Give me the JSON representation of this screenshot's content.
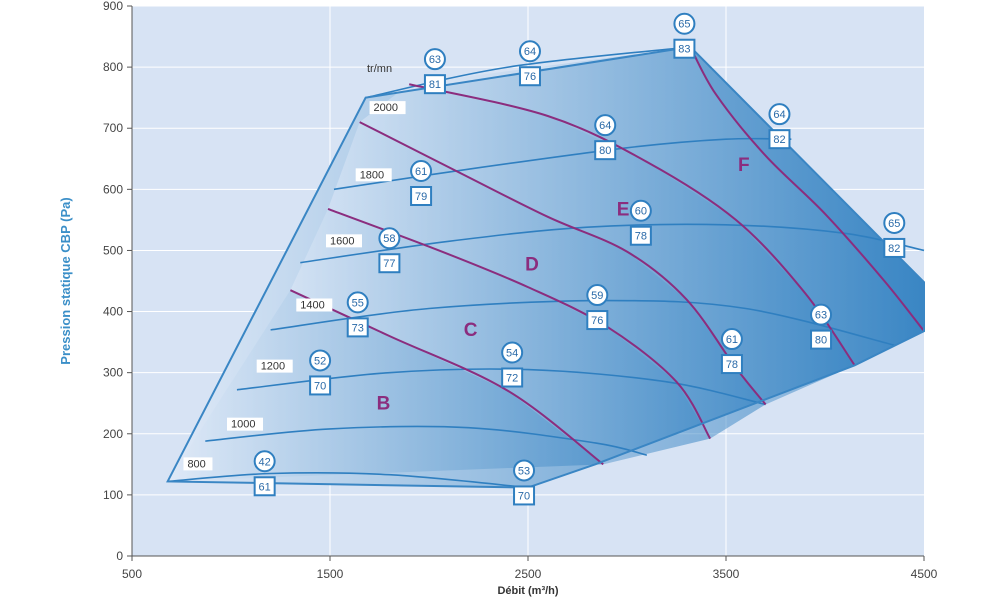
{
  "chart_data": {
    "type": "fan-performance-map",
    "xlabel": "Débit (m³/h)",
    "ylabel": "Pression statique CBP (Pa)",
    "xlim": [
      500,
      4500
    ],
    "ylim": [
      0,
      900
    ],
    "x_ticks": [
      "500",
      "1500",
      "2500",
      "3500",
      "4500"
    ],
    "y_ticks": [
      "0",
      "100",
      "200",
      "300",
      "400",
      "500",
      "600",
      "700",
      "800",
      "900"
    ],
    "rpm_unit": "tr/mn",
    "envelope": [
      [
        680,
        122
      ],
      [
        1680,
        750
      ],
      [
        3320,
        833
      ],
      [
        4500,
        448
      ],
      [
        4500,
        368
      ],
      [
        4150,
        312
      ],
      [
        2840,
        150
      ],
      [
        2500,
        112
      ]
    ],
    "speed_curves": [
      {
        "label": "800",
        "label_at": [
          780,
          145
        ],
        "points": [
          [
            680,
            122
          ],
          [
            1200,
            135
          ],
          [
            1800,
            133
          ],
          [
            2500,
            112
          ]
        ]
      },
      {
        "label": "1000",
        "label_at": [
          1000,
          210
        ],
        "points": [
          [
            870,
            188
          ],
          [
            1500,
            208
          ],
          [
            2200,
            210
          ],
          [
            2840,
            185
          ],
          [
            3100,
            165
          ]
        ]
      },
      {
        "label": "1200",
        "label_at": [
          1150,
          305
        ],
        "points": [
          [
            1030,
            272
          ],
          [
            1800,
            300
          ],
          [
            2500,
            305
          ],
          [
            3200,
            285
          ],
          [
            3700,
            248
          ]
        ]
      },
      {
        "label": "1400",
        "label_at": [
          1350,
          405
        ],
        "points": [
          [
            1200,
            370
          ],
          [
            2000,
            405
          ],
          [
            2900,
            418
          ],
          [
            3600,
            405
          ],
          [
            4350,
            345
          ]
        ]
      },
      {
        "label": "1600",
        "label_at": [
          1500,
          510
        ],
        "points": [
          [
            1350,
            480
          ],
          [
            2100,
            515
          ],
          [
            2800,
            538
          ],
          [
            3500,
            542
          ],
          [
            4100,
            528
          ],
          [
            4500,
            500
          ]
        ]
      },
      {
        "label": "1800",
        "label_at": [
          1650,
          618
        ],
        "points": [
          [
            1520,
            600
          ],
          [
            2200,
            633
          ],
          [
            3000,
            668
          ],
          [
            3500,
            682
          ],
          [
            3830,
            682
          ]
        ]
      },
      {
        "label": "2000",
        "label_at": [
          1720,
          728
        ],
        "points": [
          [
            1680,
            750
          ],
          [
            2400,
            800
          ],
          [
            3320,
            833
          ]
        ]
      }
    ],
    "efficiency_lines": [
      {
        "points": [
          [
            1300,
            435
          ],
          [
            1800,
            360
          ],
          [
            2400,
            270
          ],
          [
            2880,
            150
          ]
        ]
      },
      {
        "points": [
          [
            1490,
            568
          ],
          [
            2050,
            500
          ],
          [
            2500,
            440
          ],
          [
            2900,
            375
          ],
          [
            3250,
            285
          ],
          [
            3420,
            192
          ]
        ]
      },
      {
        "points": [
          [
            1650,
            710
          ],
          [
            2150,
            628
          ],
          [
            2600,
            555
          ],
          [
            3000,
            498
          ],
          [
            3300,
            420
          ],
          [
            3550,
            308
          ],
          [
            3700,
            248
          ]
        ]
      },
      {
        "points": [
          [
            1900,
            772
          ],
          [
            2600,
            720
          ],
          [
            3100,
            645
          ],
          [
            3550,
            550
          ],
          [
            3900,
            430
          ],
          [
            4150,
            312
          ]
        ]
      },
      {
        "points": [
          [
            3320,
            833
          ],
          [
            3450,
            755
          ],
          [
            3700,
            655
          ],
          [
            4000,
            560
          ],
          [
            4300,
            450
          ],
          [
            4500,
            368
          ]
        ]
      }
    ],
    "zones": [
      {
        "label": "B",
        "x": 1770,
        "y": 240
      },
      {
        "label": "C",
        "x": 2210,
        "y": 360
      },
      {
        "label": "D",
        "x": 2520,
        "y": 467
      },
      {
        "label": "E",
        "x": 2980,
        "y": 557
      },
      {
        "label": "F",
        "x": 3590,
        "y": 630
      }
    ],
    "markers": [
      {
        "circle": "42",
        "box": "61",
        "x": 1170,
        "y": 155
      },
      {
        "circle": "53",
        "box": "70",
        "x": 2480,
        "y": 140
      },
      {
        "circle": "52",
        "box": "70",
        "x": 1450,
        "y": 320
      },
      {
        "circle": "54",
        "box": "72",
        "x": 2420,
        "y": 333
      },
      {
        "circle": "61",
        "box": "78",
        "x": 3530,
        "y": 355
      },
      {
        "circle": "55",
        "box": "73",
        "x": 1640,
        "y": 415
      },
      {
        "circle": "59",
        "box": "76",
        "x": 2850,
        "y": 427
      },
      {
        "circle": "63",
        "box": "80",
        "x": 3980,
        "y": 395
      },
      {
        "circle": "58",
        "box": "77",
        "x": 1800,
        "y": 520
      },
      {
        "circle": "60",
        "box": "78",
        "x": 3070,
        "y": 565
      },
      {
        "circle": "65",
        "box": "82",
        "x": 4350,
        "y": 545
      },
      {
        "circle": "61",
        "box": "79",
        "x": 1960,
        "y": 630
      },
      {
        "circle": "64",
        "box": "80",
        "x": 2890,
        "y": 705
      },
      {
        "circle": "64",
        "box": "82",
        "x": 3770,
        "y": 723
      },
      {
        "circle": "63",
        "box": "81",
        "x": 2030,
        "y": 813
      },
      {
        "circle": "64",
        "box": "76",
        "x": 2510,
        "y": 826
      },
      {
        "circle": "65",
        "box": "83",
        "x": 3290,
        "y": 871
      }
    ]
  }
}
